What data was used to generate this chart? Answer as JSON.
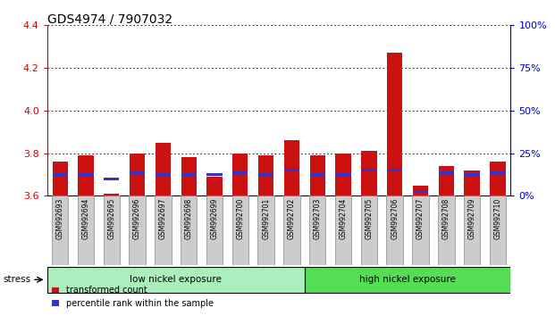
{
  "title": "GDS4974 / 7907032",
  "samples": [
    "GSM992693",
    "GSM992694",
    "GSM992695",
    "GSM992696",
    "GSM992697",
    "GSM992698",
    "GSM992699",
    "GSM992700",
    "GSM992701",
    "GSM992702",
    "GSM992703",
    "GSM992704",
    "GSM992705",
    "GSM992706",
    "GSM992707",
    "GSM992708",
    "GSM992709",
    "GSM992710"
  ],
  "red_values": [
    3.76,
    3.79,
    3.61,
    3.8,
    3.85,
    3.78,
    3.69,
    3.8,
    3.79,
    3.86,
    3.79,
    3.8,
    3.81,
    4.27,
    3.65,
    3.74,
    3.72,
    3.76
  ],
  "blue_values": [
    3.7,
    3.7,
    3.68,
    3.71,
    3.7,
    3.7,
    3.7,
    3.71,
    3.7,
    3.72,
    3.7,
    3.7,
    3.72,
    3.72,
    3.62,
    3.71,
    3.7,
    3.71
  ],
  "blue_heights": [
    0.01,
    0.01,
    0.01,
    0.01,
    0.01,
    0.01,
    0.01,
    0.01,
    0.01,
    0.01,
    0.01,
    0.01,
    0.01,
    0.01,
    0.01,
    0.01,
    0.01,
    0.01
  ],
  "baseline": 3.6,
  "ylim_left": [
    3.6,
    4.4
  ],
  "ylim_right": [
    0,
    100
  ],
  "yticks_left": [
    3.6,
    3.8,
    4.0,
    4.2,
    4.4
  ],
  "yticks_right": [
    0,
    25,
    50,
    75,
    100
  ],
  "ytick_labels_right": [
    "0%",
    "25%",
    "50%",
    "75%",
    "100%"
  ],
  "red_color": "#CC1111",
  "blue_color": "#3333CC",
  "group1_label": "low nickel exposure",
  "group2_label": "high nickel exposure",
  "group1_count": 10,
  "group1_color": "#AAEEBB",
  "group2_color": "#55DD55",
  "stress_label": "stress",
  "legend_red": "transformed count",
  "legend_blue": "percentile rank within the sample",
  "bar_width": 0.6,
  "background_color": "#ffffff",
  "tick_color_left": "#CC0000",
  "tick_color_right": "#0000CC",
  "grid_color": "#000000",
  "title_fontsize": 10,
  "axis_fontsize": 8,
  "label_box_color": "#CCCCCC",
  "spine_bottom_color": "#000000"
}
